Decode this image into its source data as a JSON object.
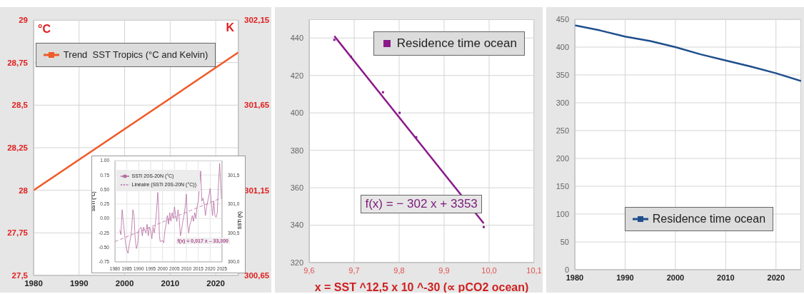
{
  "chart_data": [
    {
      "type": "line",
      "x": [
        1980,
        2025
      ],
      "series": [
        {
          "name": "Trend  SST Tropics (°C and Kelvin)",
          "color": "#f05a28",
          "values": [
            28.0,
            28.81
          ]
        }
      ],
      "ylabel": "°C",
      "y2label": "K",
      "xlim": [
        1980,
        2025
      ],
      "xticks": [
        1980,
        1990,
        2000,
        2010,
        2020
      ],
      "ylim": [
        27.5,
        29
      ],
      "yticks": [
        {
          "value": 27.5,
          "label": "27,5"
        },
        {
          "value": 27.75,
          "label": "27,75"
        },
        28,
        {
          "value": 28.25,
          "label": "28,25"
        },
        {
          "value": 28.5,
          "label": "28,5"
        },
        {
          "value": 28.75,
          "label": "28,75"
        },
        29
      ],
      "y2lim": [
        300.65,
        302.15
      ],
      "y2ticks": [
        {
          "value": 300.65,
          "label": "300,65"
        },
        {
          "value": 301.15,
          "label": "301,15"
        },
        {
          "value": 301.65,
          "label": "301,65"
        },
        {
          "value": 302.15,
          "label": "302,15"
        }
      ],
      "grid": true,
      "legend": "top left",
      "marker": "none"
    },
    {
      "type": "line",
      "series": [
        {
          "name": "SSTi 20S-20N (°C)",
          "color": "#b468a0",
          "x": [
            1982,
            1982.5,
            1983,
            1983.5,
            1984,
            1984.5,
            1985,
            1985.5,
            1986,
            1986.5,
            1987,
            1987.5,
            1988,
            1988.5,
            1989,
            1989.5,
            1990,
            1991,
            1991.5,
            1992,
            1993,
            1993.5,
            1994,
            1994.5,
            1995,
            1995.5,
            1996,
            1996.5,
            1997,
            1997.5,
            1998,
            1998.3,
            1998.7,
            1999,
            2000,
            2000.5,
            2001,
            2001.5,
            2002,
            2002.5,
            2003,
            2003.5,
            2004,
            2004.5,
            2005,
            2005.5,
            2006,
            2006.5,
            2007,
            2007.5,
            2008,
            2008.5,
            2009,
            2009.5,
            2010,
            2010.5,
            2011,
            2011.5,
            2012,
            2012.5,
            2013,
            2013.5,
            2014,
            2014.5,
            2015,
            2015.5,
            2016,
            2016.5,
            2017,
            2017.5,
            2018,
            2018.5,
            2019,
            2019.5,
            2020,
            2020.5,
            2021,
            2021.5,
            2022,
            2022.5,
            2023,
            2023.5,
            2024,
            2024.5,
            2024.8
          ],
          "values": [
            -0.2,
            -0.28,
            0.15,
            -0.05,
            -0.25,
            -0.45,
            -0.55,
            -0.6,
            -0.45,
            -0.35,
            -0.2,
            0.15,
            0.05,
            -0.35,
            -0.52,
            -0.45,
            -0.2,
            -0.15,
            -0.3,
            -0.15,
            -0.25,
            -0.1,
            -0.3,
            -0.15,
            -0.2,
            -0.35,
            -0.15,
            -0.25,
            -0.1,
            0.15,
            0.45,
            0.2,
            -0.3,
            -0.4,
            -0.38,
            -0.42,
            -0.2,
            -0.1,
            0.05,
            -0.1,
            0.1,
            -0.05,
            0.1,
            0.0,
            0.2,
            0.05,
            -0.05,
            0.15,
            0.0,
            -0.3,
            -0.2,
            -0.05,
            0.05,
            0.2,
            0.42,
            -0.1,
            -0.25,
            -0.1,
            -0.05,
            0.05,
            -0.05,
            0.1,
            0.0,
            0.2,
            0.3,
            0.55,
            0.82,
            0.3,
            0.35,
            0.25,
            0.05,
            0.2,
            0.3,
            0.4,
            0.52,
            0.25,
            0.05,
            0.3,
            0.05,
            0.02,
            0.1,
            0.6,
            0.95,
            0.5,
            0.35
          ]
        },
        {
          "name": "Linéaire (SSTi 20S-20N (°C))",
          "color": "#b468a0",
          "line_style": "dashed",
          "x": [
            1980,
            2025
          ],
          "values": [
            -0.4,
            0.36
          ]
        }
      ],
      "ylabel": "SSTi (°C)",
      "y2label": "SSTi (K)",
      "xlim": [
        1980,
        2025
      ],
      "xticks": [
        1980,
        1985,
        1990,
        1995,
        2000,
        2005,
        2010,
        2015,
        2020,
        2025
      ],
      "ylim": [
        -0.75,
        1
      ],
      "yticks": [
        {
          "value": -0.75,
          "label": "-0.75"
        },
        {
          "value": -0.5,
          "label": "-0.50"
        },
        {
          "value": -0.25,
          "label": "-0.25"
        },
        {
          "value": 0,
          "label": "0.00"
        },
        {
          "value": 0.25,
          "label": "0.25"
        },
        {
          "value": 0.5,
          "label": "0.50"
        },
        {
          "value": 0.75,
          "label": "0.75"
        },
        {
          "value": 1,
          "label": "1.00"
        }
      ],
      "y2lim": [
        300,
        301.75
      ],
      "y2ticks": [
        {
          "value": 300,
          "label": "300,0"
        },
        {
          "value": 300.5,
          "label": "300,5"
        },
        {
          "value": 301,
          "label": "301,0"
        },
        {
          "value": 301.5,
          "label": "301,5"
        }
      ],
      "annotations": [
        "f(x) = 0,017 x – 33,300"
      ],
      "grid": true,
      "legend": "top left",
      "marker": "none"
    },
    {
      "type": "scatter",
      "series": [
        {
          "name": "Residence time ocean",
          "color": "#8b1a89",
          "marker": "square",
          "x": [
            9.656,
            9.693,
            9.764,
            9.801,
            9.838,
            9.988
          ],
          "values": [
            439,
            430,
            411,
            400,
            387,
            339
          ]
        },
        {
          "type": "line",
          "color": "#8b1a89",
          "x": [
            9.656,
            9.988
          ],
          "values": [
            441,
            341
          ]
        }
      ],
      "xlabel": "x = SST ^12,5 x 10 ^-30  (∝ pCO2 ocean)",
      "xlim": [
        9.6,
        10.1
      ],
      "xticks": [
        {
          "value": 9.6,
          "label": "9,6"
        },
        {
          "value": 9.7,
          "label": "9,7"
        },
        {
          "value": 9.8,
          "label": "9,8"
        },
        {
          "value": 9.9,
          "label": "9,9"
        },
        {
          "value": 10,
          "label": "10,0"
        },
        {
          "value": 10.1,
          "label": "10,1"
        }
      ],
      "ylim": [
        320,
        450
      ],
      "yticks": [
        320,
        340,
        360,
        380,
        400,
        420,
        440
      ],
      "annotations": [
        "f(x) = − 302 x + 3353"
      ],
      "grid": true,
      "legend": "top right"
    },
    {
      "type": "line",
      "x": [
        1980,
        1985,
        1990,
        1995,
        2000,
        2005,
        2010,
        2015,
        2020,
        2025
      ],
      "series": [
        {
          "name": "Residence time ocean",
          "color": "#1f4e8c",
          "values": [
            439,
            430,
            419,
            411,
            400,
            387,
            376,
            365,
            353,
            339
          ]
        }
      ],
      "xlim": [
        1980,
        2025
      ],
      "xticks": [
        1980,
        1990,
        2000,
        2010,
        2020
      ],
      "ylim": [
        0,
        450
      ],
      "yticks": [
        0,
        50,
        100,
        150,
        200,
        250,
        300,
        350,
        400,
        450
      ],
      "grid": true,
      "legend": "bottom",
      "marker": "none"
    }
  ]
}
